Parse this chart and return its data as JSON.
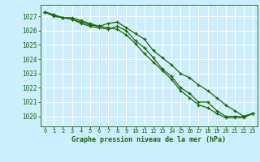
{
  "title": "Graphe pression niveau de la mer (hPa)",
  "bg_color": "#cceeff",
  "grid_color": "#ffffff",
  "line_color": "#1a6600",
  "x_ticks": [
    0,
    1,
    2,
    3,
    4,
    5,
    6,
    7,
    8,
    9,
    10,
    11,
    12,
    13,
    14,
    15,
    16,
    17,
    18,
    19,
    20,
    21,
    22,
    23
  ],
  "y_ticks": [
    1020,
    1021,
    1022,
    1023,
    1024,
    1025,
    1026,
    1027
  ],
  "ylim": [
    1019.3,
    1027.8
  ],
  "xlim": [
    -0.5,
    23.5
  ],
  "line1": [
    1027.3,
    1027.1,
    1026.9,
    1026.8,
    1026.5,
    1026.3,
    1026.2,
    1026.1,
    1026.3,
    1026.0,
    1025.3,
    1024.8,
    1024.1,
    1023.3,
    1022.8,
    1022.0,
    1021.6,
    1021.0,
    1021.0,
    1020.4,
    1020.0,
    1020.0,
    1020.0,
    1020.2
  ],
  "line2": [
    1027.3,
    1027.0,
    1026.9,
    1026.8,
    1026.6,
    1026.4,
    1026.3,
    1026.5,
    1026.6,
    1026.2,
    1025.8,
    1025.4,
    1024.6,
    1024.1,
    1023.6,
    1023.0,
    1022.7,
    1022.2,
    1021.8,
    1021.3,
    1020.8,
    1020.4,
    1020.0,
    1020.2
  ],
  "line3": [
    1027.3,
    1027.1,
    1026.9,
    1026.9,
    1026.7,
    1026.5,
    1026.3,
    1026.2,
    1026.1,
    1025.7,
    1025.1,
    1024.4,
    1023.8,
    1023.2,
    1022.6,
    1021.8,
    1021.3,
    1020.8,
    1020.6,
    1020.2,
    1019.9,
    1019.9,
    1019.9,
    1020.2
  ]
}
